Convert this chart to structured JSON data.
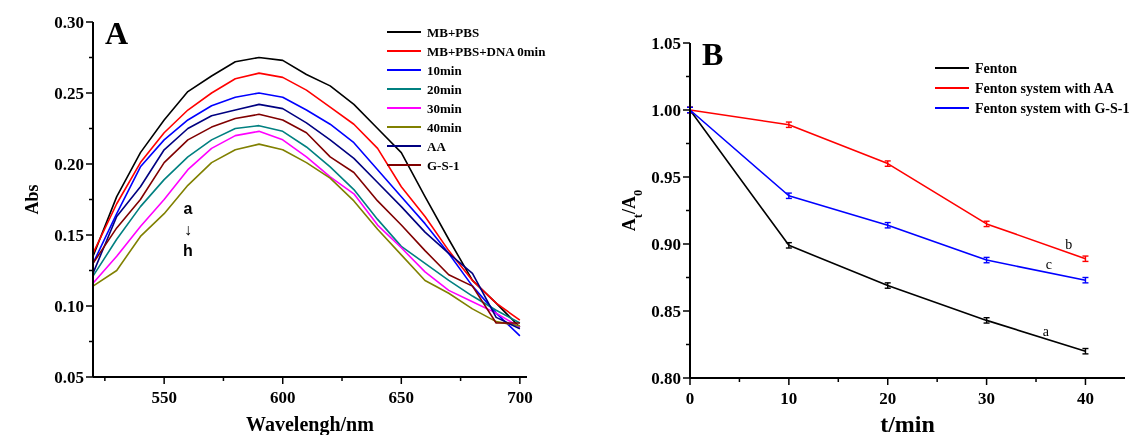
{
  "chart_data": [
    {
      "type": "line",
      "title": "A",
      "xlabel": "Wavelengh/nm",
      "ylabel": "Abs",
      "x": [
        520,
        530,
        540,
        550,
        560,
        570,
        580,
        590,
        600,
        610,
        620,
        630,
        640,
        650,
        660,
        670,
        680,
        690,
        700
      ],
      "xlim": [
        520,
        703
      ],
      "xticks": [
        {
          "value": 525,
          "label": null
        },
        550,
        {
          "value": 575,
          "label": null
        },
        600,
        {
          "value": 625,
          "label": null
        },
        650,
        {
          "value": 675,
          "label": null
        },
        700
      ],
      "ylim": [
        0.05,
        0.3
      ],
      "yticks": [
        {
          "value": 0.05,
          "label": "0.05"
        },
        {
          "value": 0.075,
          "label": null
        },
        {
          "value": 0.1,
          "label": "0.10"
        },
        {
          "value": 0.125,
          "label": null
        },
        {
          "value": 0.15,
          "label": "0.15"
        },
        {
          "value": 0.175,
          "label": null
        },
        {
          "value": 0.2,
          "label": "0.20"
        },
        {
          "value": 0.225,
          "label": null
        },
        {
          "value": 0.25,
          "label": "0.25"
        },
        {
          "value": 0.275,
          "label": null
        },
        {
          "value": 0.3,
          "label": "0.30"
        }
      ],
      "legend": "top right",
      "line_style": "solid",
      "marker": "none",
      "annotations": [
        "a",
        "↓",
        "h"
      ],
      "series": [
        {
          "name": "MB+PBS",
          "color": "#000000",
          "values": [
            0.135,
            0.177,
            0.208,
            0.231,
            0.251,
            0.262,
            0.272,
            0.275,
            0.273,
            0.263,
            0.255,
            0.242,
            0.225,
            0.208,
            0.177,
            0.147,
            0.118,
            0.102,
            0.085
          ]
        },
        {
          "name": "MB+PBS+DNA 0min",
          "color": "#ff0000",
          "values": [
            0.137,
            0.172,
            0.201,
            0.222,
            0.238,
            0.25,
            0.26,
            0.264,
            0.261,
            0.252,
            0.24,
            0.228,
            0.211,
            0.184,
            0.163,
            0.139,
            0.118,
            0.102,
            0.09
          ]
        },
        {
          "name": "10min",
          "color": "#0000ff",
          "values": [
            0.13,
            0.165,
            0.198,
            0.217,
            0.231,
            0.241,
            0.247,
            0.25,
            0.247,
            0.238,
            0.228,
            0.215,
            0.196,
            0.177,
            0.158,
            0.137,
            0.114,
            0.095,
            0.079
          ]
        },
        {
          "name": "20min",
          "color": "#008080",
          "values": [
            0.121,
            0.147,
            0.17,
            0.189,
            0.205,
            0.217,
            0.225,
            0.227,
            0.223,
            0.212,
            0.198,
            0.182,
            0.161,
            0.142,
            0.13,
            0.118,
            0.107,
            0.097,
            0.088
          ]
        },
        {
          "name": "30min",
          "color": "#ff00ff",
          "values": [
            0.116,
            0.135,
            0.156,
            0.175,
            0.196,
            0.211,
            0.22,
            0.223,
            0.217,
            0.205,
            0.191,
            0.179,
            0.157,
            0.141,
            0.124,
            0.111,
            0.103,
            0.095,
            0.085
          ]
        },
        {
          "name": "40min",
          "color": "#808000",
          "values": [
            0.114,
            0.125,
            0.149,
            0.165,
            0.185,
            0.201,
            0.21,
            0.214,
            0.21,
            0.201,
            0.19,
            0.174,
            0.154,
            0.136,
            0.118,
            0.109,
            0.098,
            0.089,
            0.086
          ]
        },
        {
          "name": "AA",
          "color": "#000080",
          "values": [
            0.123,
            0.163,
            0.184,
            0.21,
            0.225,
            0.234,
            0.238,
            0.242,
            0.239,
            0.229,
            0.217,
            0.204,
            0.187,
            0.17,
            0.152,
            0.137,
            0.123,
            0.092,
            0.084
          ]
        },
        {
          "name": "G-S-1",
          "color": "#800000",
          "values": [
            0.13,
            0.155,
            0.175,
            0.201,
            0.217,
            0.226,
            0.232,
            0.235,
            0.231,
            0.222,
            0.205,
            0.194,
            0.174,
            0.157,
            0.139,
            0.122,
            0.114,
            0.088,
            0.088
          ]
        }
      ]
    },
    {
      "type": "line",
      "title": "B",
      "xlabel": "t/min",
      "ylabel": "A$_{t}$/A$_{0}$",
      "x": [
        0,
        10,
        20,
        30,
        40
      ],
      "xlim": [
        0,
        44
      ],
      "xticks": [
        0,
        {
          "value": 5,
          "label": null
        },
        10,
        {
          "value": 15,
          "label": null
        },
        20,
        {
          "value": 25,
          "label": null
        },
        30,
        {
          "value": 35,
          "label": null
        },
        40
      ],
      "ylim": [
        0.8,
        1.05
      ],
      "yticks": [
        {
          "value": 0.8,
          "label": "0.80"
        },
        {
          "value": 0.825,
          "label": null
        },
        {
          "value": 0.85,
          "label": "0.85"
        },
        {
          "value": 0.875,
          "label": null
        },
        {
          "value": 0.9,
          "label": "0.90"
        },
        {
          "value": 0.925,
          "label": null
        },
        {
          "value": 0.95,
          "label": "0.95"
        },
        {
          "value": 0.975,
          "label": null
        },
        {
          "value": 1.0,
          "label": "1.00"
        },
        {
          "value": 1.025,
          "label": null
        },
        {
          "value": 1.05,
          "label": "1.05"
        }
      ],
      "legend": "top right",
      "line_style": "solid",
      "marker": "none",
      "annotations": [
        {
          "text": "a",
          "x": 36,
          "y": 0.831
        },
        {
          "text": "b",
          "x": 38.3,
          "y": 0.896
        },
        {
          "text": "c",
          "x": 36.3,
          "y": 0.881
        }
      ],
      "series": [
        {
          "name": "Fenton",
          "color": "#000000",
          "values": [
            1.0,
            0.899,
            0.869,
            0.843,
            0.82
          ],
          "errors": [
            0.002,
            0.002,
            0.002,
            0.002,
            0.002
          ]
        },
        {
          "name": "Fenton system with AA",
          "color": "#ff0000",
          "values": [
            1.0,
            0.989,
            0.96,
            0.915,
            0.889
          ],
          "errors": [
            0.002,
            0.002,
            0.002,
            0.002,
            0.002
          ]
        },
        {
          "name": "Fenton system with G-S-1",
          "color": "#0000ff",
          "values": [
            1.0,
            0.936,
            0.914,
            0.888,
            0.873
          ],
          "errors": [
            0.002,
            0.002,
            0.002,
            0.002,
            0.002
          ]
        }
      ]
    }
  ]
}
